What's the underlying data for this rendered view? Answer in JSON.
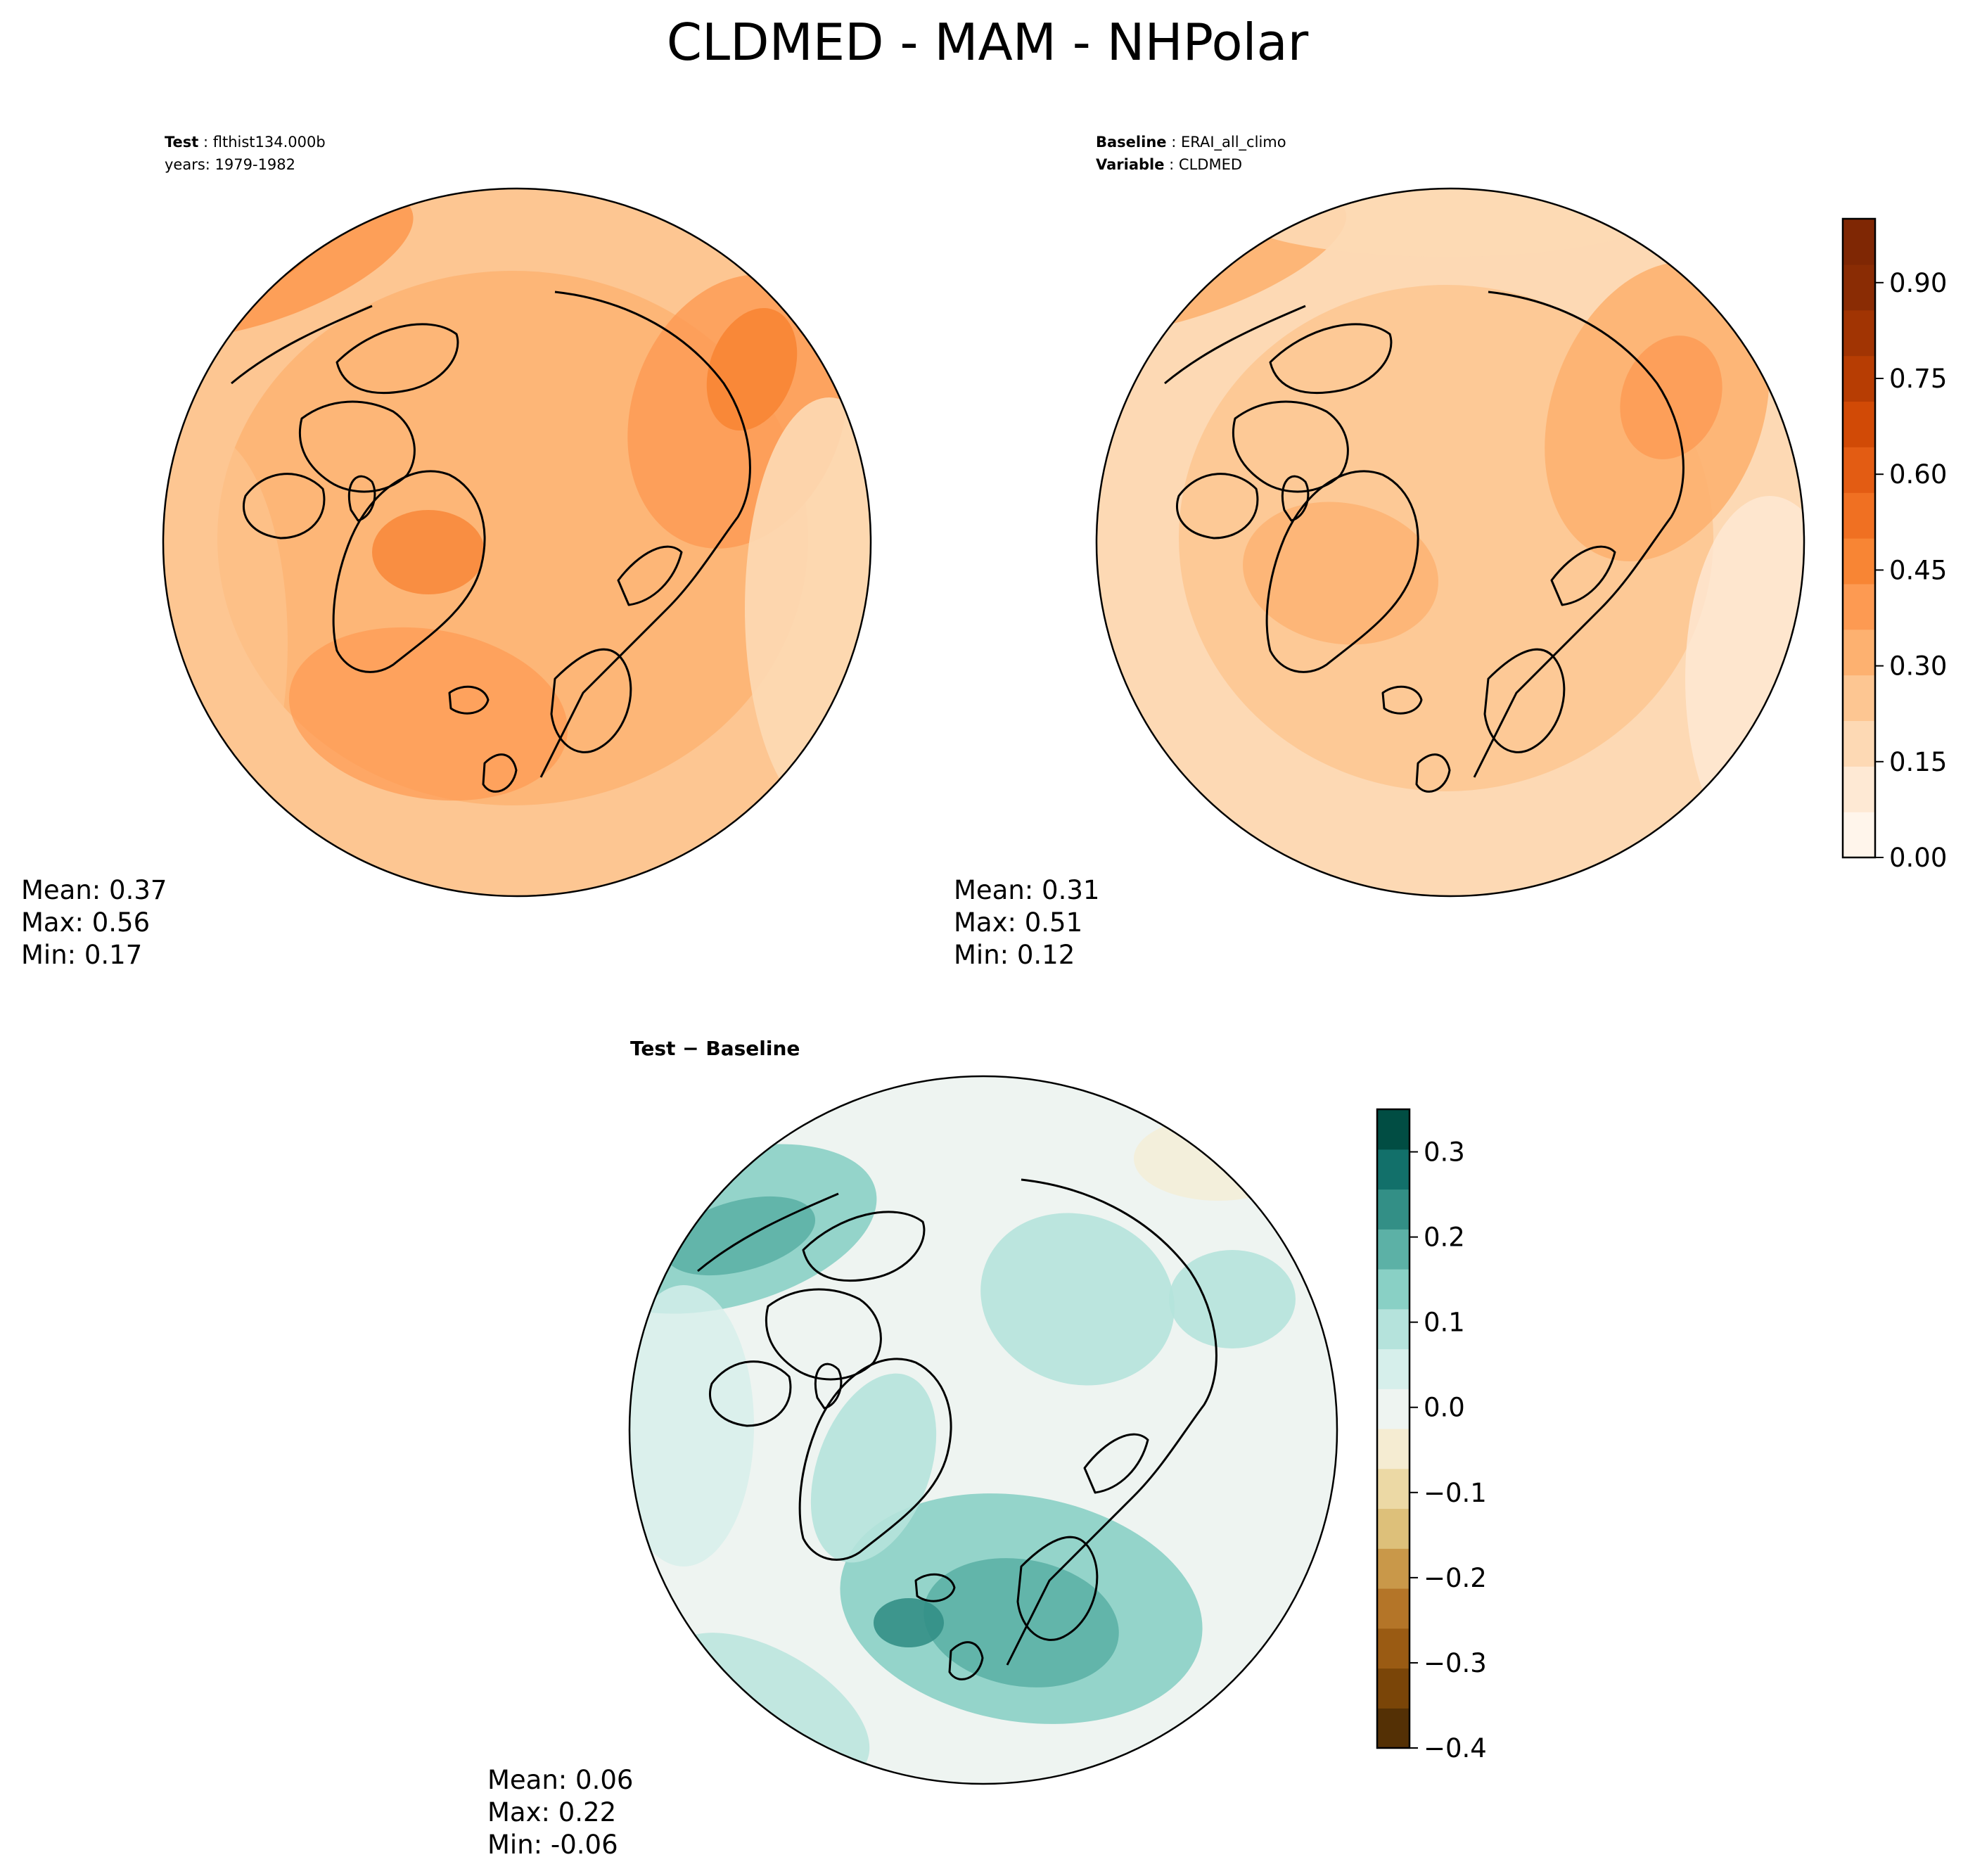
{
  "title": "CLDMED - MAM - NHPolar",
  "panels": {
    "test": {
      "label_key": "Test",
      "label_value": "flthist134.000b",
      "label_line2": "years: 1979-1982",
      "mean": "Mean:  0.37",
      "max": "Max:  0.56",
      "min": "Min:  0.17"
    },
    "baseline": {
      "label_key": "Baseline",
      "label_value": "ERAI_all_climo",
      "label2_key": "Variable",
      "label2_value": "CLDMED",
      "mean": "Mean:  0.31",
      "max": "Max:  0.51",
      "min": "Min:  0.12"
    },
    "diff": {
      "label": "Test − Baseline",
      "mean": "Mean:  0.06",
      "max": "Max:  0.22",
      "min": "Min: -0.06"
    }
  },
  "colorbars": {
    "main": {
      "ticks": [
        "0.00",
        "0.15",
        "0.30",
        "0.45",
        "0.60",
        "0.75",
        "0.90"
      ],
      "range": [
        0.0,
        1.0
      ],
      "colors": [
        "#fff5eb",
        "#fee9d4",
        "#fdd9b4",
        "#fdc692",
        "#fdb170",
        "#fd9a52",
        "#f88534",
        "#f07022",
        "#e35c13",
        "#d14a06",
        "#b73d03",
        "#a13403",
        "#8a2c04",
        "#7f2704"
      ]
    },
    "diff": {
      "ticks": [
        "0.3",
        "0.2",
        "0.1",
        "0.0",
        "−0.1",
        "−0.2",
        "−0.3",
        "−0.4"
      ],
      "range": [
        -0.4,
        0.35
      ],
      "colors": [
        "#543005",
        "#7a4508",
        "#9a5b13",
        "#b47528",
        "#c99849",
        "#ddc07a",
        "#ecd9a5",
        "#f5ecd2",
        "#eef4f1",
        "#d6efeb",
        "#b5e3dc",
        "#89d0c5",
        "#5cb1a6",
        "#338f86",
        "#12706a",
        "#014d43"
      ]
    }
  }
}
